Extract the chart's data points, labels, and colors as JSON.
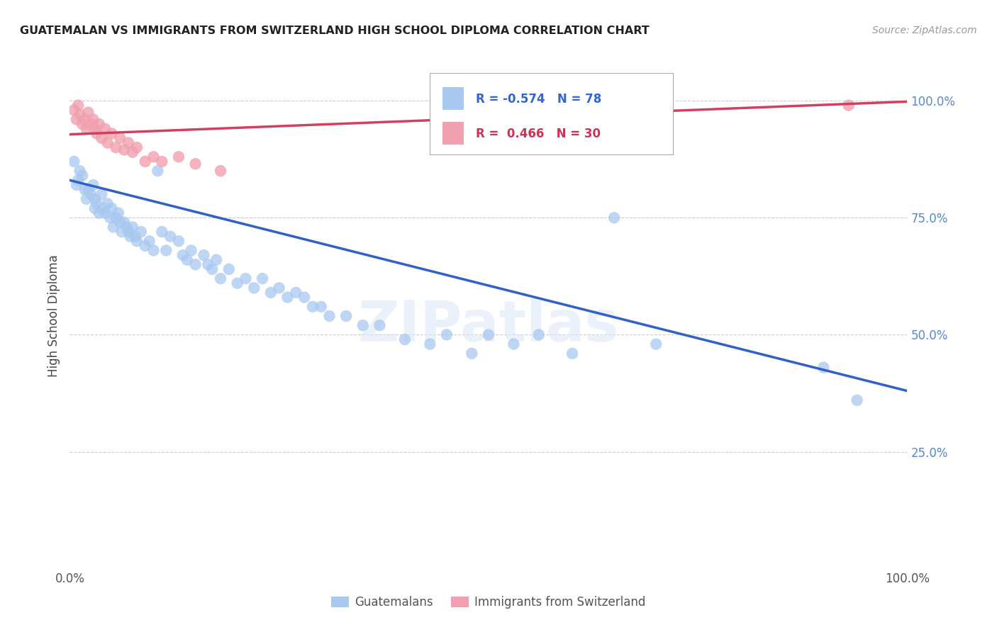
{
  "title": "GUATEMALAN VS IMMIGRANTS FROM SWITZERLAND HIGH SCHOOL DIPLOMA CORRELATION CHART",
  "source": "Source: ZipAtlas.com",
  "ylabel": "High School Diploma",
  "xlim": [
    0.0,
    1.0
  ],
  "ylim": [
    0.0,
    1.08
  ],
  "yticks": [
    0.25,
    0.5,
    0.75,
    1.0
  ],
  "ytick_labels": [
    "25.0%",
    "50.0%",
    "75.0%",
    "100.0%"
  ],
  "xtick_positions": [
    0.0,
    0.5,
    1.0
  ],
  "xtick_labels": [
    "0.0%",
    "",
    "100.0%"
  ],
  "blue_R": -0.574,
  "blue_N": 78,
  "pink_R": 0.466,
  "pink_N": 30,
  "blue_color": "#a8c8f0",
  "pink_color": "#f0a0b0",
  "blue_line_color": "#3060c8",
  "pink_line_color": "#d04060",
  "watermark": "ZIPatlas",
  "blue_trendline_x": [
    0.0,
    1.0
  ],
  "blue_trendline_y": [
    0.83,
    0.38
  ],
  "pink_trendline_x": [
    0.0,
    1.0
  ],
  "pink_trendline_y": [
    0.928,
    0.998
  ],
  "blue_scatter_x": [
    0.005,
    0.008,
    0.01,
    0.012,
    0.015,
    0.018,
    0.02,
    0.022,
    0.025,
    0.028,
    0.03,
    0.03,
    0.032,
    0.035,
    0.038,
    0.04,
    0.042,
    0.045,
    0.048,
    0.05,
    0.052,
    0.055,
    0.058,
    0.06,
    0.062,
    0.065,
    0.068,
    0.07,
    0.072,
    0.075,
    0.078,
    0.08,
    0.085,
    0.09,
    0.095,
    0.1,
    0.105,
    0.11,
    0.115,
    0.12,
    0.13,
    0.135,
    0.14,
    0.145,
    0.15,
    0.16,
    0.165,
    0.17,
    0.175,
    0.18,
    0.19,
    0.2,
    0.21,
    0.22,
    0.23,
    0.24,
    0.25,
    0.26,
    0.27,
    0.28,
    0.29,
    0.3,
    0.31,
    0.33,
    0.35,
    0.37,
    0.4,
    0.43,
    0.45,
    0.48,
    0.5,
    0.53,
    0.56,
    0.6,
    0.65,
    0.7,
    0.9,
    0.94
  ],
  "blue_scatter_y": [
    0.87,
    0.82,
    0.83,
    0.85,
    0.84,
    0.81,
    0.79,
    0.81,
    0.8,
    0.82,
    0.79,
    0.77,
    0.78,
    0.76,
    0.8,
    0.77,
    0.76,
    0.78,
    0.75,
    0.77,
    0.73,
    0.75,
    0.76,
    0.74,
    0.72,
    0.74,
    0.73,
    0.72,
    0.71,
    0.73,
    0.71,
    0.7,
    0.72,
    0.69,
    0.7,
    0.68,
    0.85,
    0.72,
    0.68,
    0.71,
    0.7,
    0.67,
    0.66,
    0.68,
    0.65,
    0.67,
    0.65,
    0.64,
    0.66,
    0.62,
    0.64,
    0.61,
    0.62,
    0.6,
    0.62,
    0.59,
    0.6,
    0.58,
    0.59,
    0.58,
    0.56,
    0.56,
    0.54,
    0.54,
    0.52,
    0.52,
    0.49,
    0.48,
    0.5,
    0.46,
    0.5,
    0.48,
    0.5,
    0.46,
    0.75,
    0.48,
    0.43,
    0.36
  ],
  "pink_scatter_x": [
    0.005,
    0.008,
    0.01,
    0.012,
    0.015,
    0.018,
    0.02,
    0.022,
    0.025,
    0.028,
    0.03,
    0.032,
    0.035,
    0.038,
    0.042,
    0.045,
    0.05,
    0.055,
    0.06,
    0.065,
    0.07,
    0.075,
    0.08,
    0.09,
    0.1,
    0.11,
    0.13,
    0.15,
    0.18,
    0.93
  ],
  "pink_scatter_y": [
    0.98,
    0.96,
    0.99,
    0.97,
    0.95,
    0.96,
    0.94,
    0.975,
    0.95,
    0.96,
    0.94,
    0.93,
    0.95,
    0.92,
    0.94,
    0.91,
    0.93,
    0.9,
    0.92,
    0.895,
    0.91,
    0.89,
    0.9,
    0.87,
    0.88,
    0.87,
    0.88,
    0.865,
    0.85,
    0.99
  ]
}
